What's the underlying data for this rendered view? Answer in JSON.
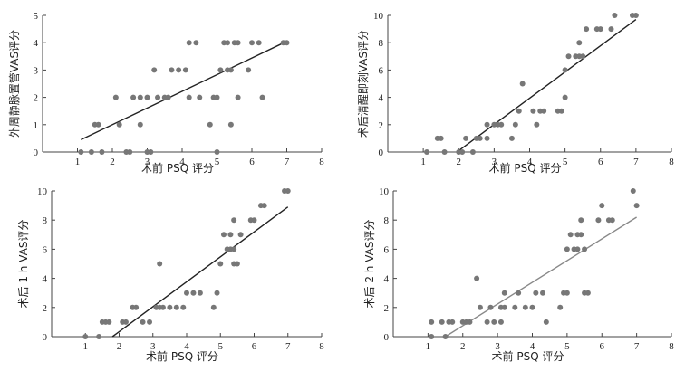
{
  "chart_data": [
    {
      "type": "scatter",
      "title": "",
      "xlabel": "术前 PSQ 评分",
      "ylabel": "外周静脉置管VAS评分",
      "xlim": [
        0,
        8
      ],
      "ylim": [
        0,
        5
      ],
      "xticks": [
        "1",
        "2",
        "3",
        "4",
        "5",
        "6",
        "7",
        "8"
      ],
      "yticks": [
        "0",
        "1",
        "2",
        "3",
        "4",
        "5"
      ],
      "point_color": "#777777",
      "line_color": "#222222",
      "points": [
        [
          1.1,
          0
        ],
        [
          1.4,
          0
        ],
        [
          1.5,
          1
        ],
        [
          1.6,
          1
        ],
        [
          1.7,
          0
        ],
        [
          2.1,
          2
        ],
        [
          2.2,
          1
        ],
        [
          2.4,
          0
        ],
        [
          2.5,
          0
        ],
        [
          2.6,
          2
        ],
        [
          2.8,
          1
        ],
        [
          2.8,
          2
        ],
        [
          3.0,
          2
        ],
        [
          3.0,
          0
        ],
        [
          3.1,
          0
        ],
        [
          3.2,
          3
        ],
        [
          3.3,
          2
        ],
        [
          3.5,
          2
        ],
        [
          3.6,
          2
        ],
        [
          3.7,
          3
        ],
        [
          3.9,
          3
        ],
        [
          4.1,
          3
        ],
        [
          4.2,
          4
        ],
        [
          4.2,
          2
        ],
        [
          4.4,
          4
        ],
        [
          4.5,
          2
        ],
        [
          4.8,
          1
        ],
        [
          4.9,
          2
        ],
        [
          5.0,
          0
        ],
        [
          5.0,
          2
        ],
        [
          5.1,
          3
        ],
        [
          5.2,
          4
        ],
        [
          5.3,
          3
        ],
        [
          5.3,
          4
        ],
        [
          5.4,
          3
        ],
        [
          5.4,
          1
        ],
        [
          5.5,
          4
        ],
        [
          5.6,
          4
        ],
        [
          5.6,
          2
        ],
        [
          5.9,
          3
        ],
        [
          6.0,
          4
        ],
        [
          6.2,
          4
        ],
        [
          6.3,
          2
        ],
        [
          6.9,
          4
        ],
        [
          7.0,
          4
        ]
      ],
      "trendline": [
        [
          1.1,
          0.45
        ],
        [
          7.0,
          4.05
        ]
      ]
    },
    {
      "type": "scatter",
      "title": "",
      "xlabel": "术前 PSQ 评分",
      "ylabel": "术后清醒即刻VAS评分",
      "xlim": [
        0,
        8
      ],
      "ylim": [
        0,
        10
      ],
      "xticks": [
        "1",
        "2",
        "3",
        "4",
        "5",
        "6",
        "7",
        "8"
      ],
      "yticks": [
        "0",
        "2",
        "4",
        "6",
        "8",
        "10"
      ],
      "point_color": "#777777",
      "line_color": "#222222",
      "points": [
        [
          1.1,
          0
        ],
        [
          1.4,
          1
        ],
        [
          1.5,
          1
        ],
        [
          1.6,
          0
        ],
        [
          2.0,
          0
        ],
        [
          2.1,
          0
        ],
        [
          2.2,
          1
        ],
        [
          2.4,
          0
        ],
        [
          2.5,
          1
        ],
        [
          2.6,
          1
        ],
        [
          2.8,
          2
        ],
        [
          2.8,
          1
        ],
        [
          3.0,
          2
        ],
        [
          3.1,
          2
        ],
        [
          3.2,
          2
        ],
        [
          3.5,
          1
        ],
        [
          3.6,
          2
        ],
        [
          3.7,
          3
        ],
        [
          3.8,
          5
        ],
        [
          4.1,
          3
        ],
        [
          4.2,
          2
        ],
        [
          4.3,
          3
        ],
        [
          4.4,
          3
        ],
        [
          4.8,
          3
        ],
        [
          4.9,
          3
        ],
        [
          5.0,
          4
        ],
        [
          5.0,
          6
        ],
        [
          5.1,
          7
        ],
        [
          5.3,
          7
        ],
        [
          5.4,
          7
        ],
        [
          5.4,
          8
        ],
        [
          5.5,
          7
        ],
        [
          5.6,
          9
        ],
        [
          5.9,
          9
        ],
        [
          6.0,
          9
        ],
        [
          6.3,
          9
        ],
        [
          6.4,
          10
        ],
        [
          6.9,
          10
        ],
        [
          7.0,
          10
        ]
      ],
      "trendline": [
        [
          2.0,
          0.1
        ],
        [
          7.0,
          9.7
        ]
      ]
    },
    {
      "type": "scatter",
      "title": "",
      "xlabel": "术前 PSQ 评分",
      "ylabel": "术后 1 h VAS评分",
      "xlim": [
        0,
        8
      ],
      "ylim": [
        0,
        10
      ],
      "xticks": [
        "1",
        "2",
        "3",
        "4",
        "5",
        "6",
        "7",
        "8"
      ],
      "yticks": [
        "0",
        "2",
        "4",
        "6",
        "8",
        "10"
      ],
      "point_color": "#777777",
      "line_color": "#222222",
      "points": [
        [
          1.0,
          0
        ],
        [
          1.4,
          0
        ],
        [
          1.5,
          1
        ],
        [
          1.6,
          1
        ],
        [
          1.7,
          1
        ],
        [
          2.1,
          1
        ],
        [
          2.2,
          1
        ],
        [
          2.4,
          2
        ],
        [
          2.5,
          2
        ],
        [
          2.7,
          1
        ],
        [
          2.9,
          1
        ],
        [
          3.1,
          2
        ],
        [
          3.2,
          2
        ],
        [
          3.2,
          5
        ],
        [
          3.3,
          2
        ],
        [
          3.5,
          2
        ],
        [
          3.7,
          2
        ],
        [
          3.9,
          2
        ],
        [
          4.0,
          3
        ],
        [
          4.2,
          3
        ],
        [
          4.4,
          3
        ],
        [
          4.8,
          2
        ],
        [
          4.9,
          3
        ],
        [
          5.0,
          5
        ],
        [
          5.1,
          7
        ],
        [
          5.2,
          6
        ],
        [
          5.3,
          7
        ],
        [
          5.3,
          6
        ],
        [
          5.4,
          8
        ],
        [
          5.4,
          6
        ],
        [
          5.4,
          5
        ],
        [
          5.5,
          5
        ],
        [
          5.6,
          7
        ],
        [
          5.9,
          8
        ],
        [
          6.0,
          8
        ],
        [
          6.2,
          9
        ],
        [
          6.3,
          9
        ],
        [
          6.9,
          10
        ],
        [
          7.0,
          10
        ]
      ],
      "trendline": [
        [
          1.8,
          0
        ],
        [
          7.0,
          8.9
        ]
      ]
    },
    {
      "type": "scatter",
      "title": "",
      "xlabel": "术前 PSQ 评分",
      "ylabel": "术后 2 h VAS评分",
      "xlim": [
        0,
        8
      ],
      "ylim": [
        0,
        10
      ],
      "xticks": [
        "1",
        "2",
        "3",
        "4",
        "5",
        "6",
        "7",
        "8"
      ],
      "yticks": [
        "0",
        "2",
        "4",
        "6",
        "8",
        "10"
      ],
      "point_color": "#777777",
      "line_color": "#888888",
      "points": [
        [
          1.1,
          0
        ],
        [
          1.1,
          1
        ],
        [
          1.4,
          1
        ],
        [
          1.5,
          0
        ],
        [
          1.6,
          1
        ],
        [
          1.7,
          1
        ],
        [
          2.0,
          1
        ],
        [
          2.1,
          1
        ],
        [
          2.2,
          1
        ],
        [
          2.4,
          4
        ],
        [
          2.5,
          2
        ],
        [
          2.7,
          1
        ],
        [
          2.8,
          2
        ],
        [
          2.9,
          1
        ],
        [
          3.1,
          1
        ],
        [
          3.1,
          2
        ],
        [
          3.2,
          2
        ],
        [
          3.2,
          3
        ],
        [
          3.5,
          2
        ],
        [
          3.6,
          3
        ],
        [
          3.8,
          2
        ],
        [
          4.0,
          2
        ],
        [
          4.1,
          3
        ],
        [
          4.3,
          3
        ],
        [
          4.4,
          1
        ],
        [
          4.8,
          2
        ],
        [
          4.9,
          3
        ],
        [
          5.0,
          3
        ],
        [
          5.0,
          6
        ],
        [
          5.1,
          7
        ],
        [
          5.2,
          6
        ],
        [
          5.3,
          7
        ],
        [
          5.3,
          6
        ],
        [
          5.4,
          7
        ],
        [
          5.4,
          8
        ],
        [
          5.5,
          6
        ],
        [
          5.5,
          3
        ],
        [
          5.6,
          3
        ],
        [
          5.9,
          8
        ],
        [
          6.0,
          9
        ],
        [
          6.2,
          8
        ],
        [
          6.3,
          8
        ],
        [
          6.9,
          10
        ],
        [
          7.0,
          9
        ]
      ],
      "trendline": [
        [
          1.5,
          0
        ],
        [
          7.0,
          8.2
        ]
      ]
    }
  ]
}
